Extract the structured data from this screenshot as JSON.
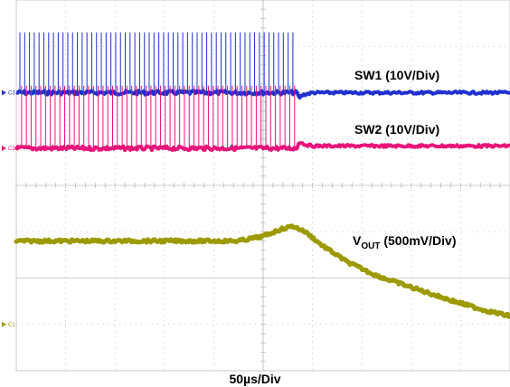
{
  "chart_data": {
    "type": "line",
    "xlabel": "50µs/Div",
    "x_divisions": 10,
    "y_divisions": 8,
    "grid": true,
    "x_units": "div",
    "series": [
      {
        "label": "SW1 (10V/Div)",
        "color": "#1f2fd0",
        "channel_marker": "C3",
        "baseline_div": 2.0,
        "switching_amplitude_div": 1.3,
        "switching_start_div": 0.0,
        "switching_stop_div": 5.7,
        "pulse_count": 58,
        "points": [
          [
            0,
            2.0
          ],
          [
            5.7,
            2.0
          ],
          [
            5.72,
            2.12
          ],
          [
            5.8,
            2.05
          ],
          [
            6.0,
            2.0
          ],
          [
            10,
            2.0
          ]
        ]
      },
      {
        "label": "SW2 (10V/Div)",
        "color": "#e8147a",
        "channel_marker": "C3",
        "baseline_div": 3.2,
        "switching_amplitude_div": 1.35,
        "switching_start_div": 0.0,
        "switching_stop_div": 5.7,
        "pulse_count": 58,
        "points": [
          [
            0,
            3.2
          ],
          [
            5.7,
            3.2
          ],
          [
            5.72,
            3.05
          ],
          [
            5.85,
            3.12
          ],
          [
            6.0,
            3.15
          ],
          [
            10,
            3.15
          ]
        ]
      },
      {
        "label_prefix": "V",
        "label_sub": "OUT",
        "label_suffix": " (500mV/Div)",
        "color": "#9c9a00",
        "channel_marker": "C1",
        "points": [
          [
            0,
            5.2
          ],
          [
            4.5,
            5.2
          ],
          [
            5.0,
            5.1
          ],
          [
            5.35,
            4.95
          ],
          [
            5.6,
            4.88
          ],
          [
            5.85,
            5.0
          ],
          [
            6.2,
            5.3
          ],
          [
            6.7,
            5.65
          ],
          [
            7.3,
            5.95
          ],
          [
            8.0,
            6.2
          ],
          [
            8.8,
            6.48
          ],
          [
            9.5,
            6.7
          ],
          [
            10,
            6.82
          ]
        ]
      }
    ]
  }
}
